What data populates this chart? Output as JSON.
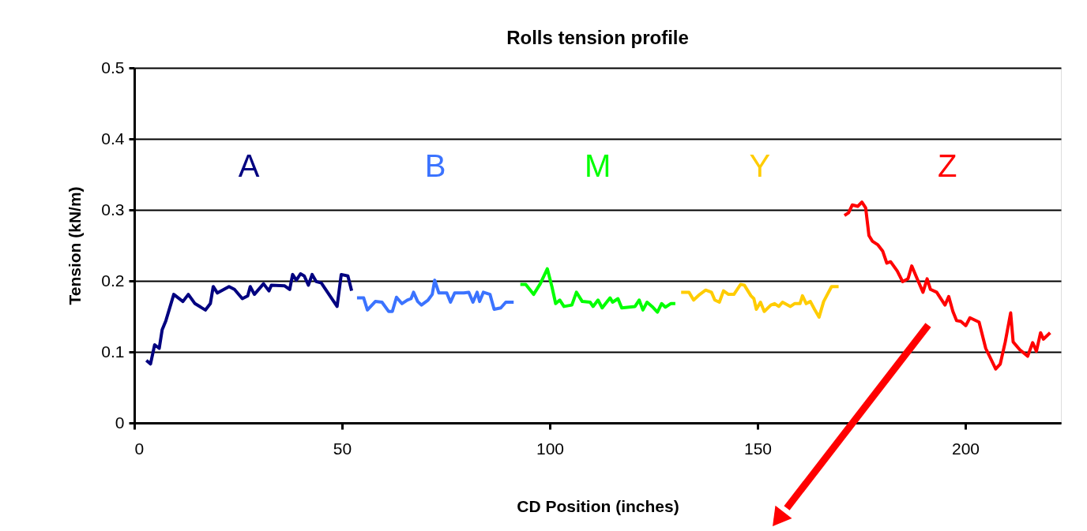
{
  "chart_data": {
    "type": "line",
    "title": "Rolls tension profile",
    "xlabel": "CD Position (inches)",
    "ylabel": "Tension (kN/m)",
    "xlim": [
      0,
      223
    ],
    "xticks": [
      0,
      50,
      100,
      150,
      200
    ],
    "ylim": [
      0,
      0.5
    ],
    "yticks": [
      0,
      0.1,
      0.2,
      0.3,
      0.4,
      0.5
    ],
    "grid": "y",
    "line_style": "solid",
    "marker": "none",
    "series": [
      {
        "name": "A",
        "color": "#000080",
        "x": [
          2.9,
          3.9,
          4.9,
          6.0,
          6.7,
          7.6,
          9.5,
          11.7,
          13.0,
          14.6,
          17.1,
          18.3,
          19.0,
          20.0,
          22.8,
          24.1,
          26.0,
          27.3,
          27.9,
          28.9,
          31.1,
          32.4,
          33.0,
          36.2,
          37.4,
          38.1,
          39.0,
          40.0,
          40.9,
          41.9,
          42.8,
          43.8,
          45.0,
          48.8,
          49.8,
          51.4,
          52.3
        ],
        "values": [
          0.088,
          0.083,
          0.11,
          0.105,
          0.131,
          0.144,
          0.181,
          0.171,
          0.181,
          0.168,
          0.159,
          0.168,
          0.192,
          0.183,
          0.192,
          0.188,
          0.175,
          0.179,
          0.192,
          0.181,
          0.196,
          0.186,
          0.194,
          0.193,
          0.188,
          0.209,
          0.201,
          0.21,
          0.207,
          0.194,
          0.209,
          0.199,
          0.197,
          0.164,
          0.209,
          0.207,
          0.186
        ]
      },
      {
        "name": "B",
        "color": "#3b73ff",
        "x": [
          53.6,
          55.2,
          56.1,
          58.0,
          59.6,
          61.2,
          62.1,
          63.1,
          64.4,
          65.7,
          66.6,
          67.2,
          68.2,
          69.1,
          70.7,
          71.7,
          72.3,
          73.3,
          75.2,
          76.1,
          77.1,
          79.3,
          80.5,
          81.5,
          82.5,
          83.1,
          84.0,
          85.6,
          86.6,
          88.2,
          89.4,
          91.3
        ],
        "values": [
          0.176,
          0.176,
          0.159,
          0.171,
          0.17,
          0.157,
          0.157,
          0.177,
          0.168,
          0.173,
          0.175,
          0.184,
          0.171,
          0.166,
          0.173,
          0.181,
          0.201,
          0.183,
          0.183,
          0.17,
          0.183,
          0.183,
          0.184,
          0.17,
          0.184,
          0.171,
          0.184,
          0.181,
          0.16,
          0.162,
          0.17,
          0.17
        ]
      },
      {
        "name": "M",
        "color": "#00ff00",
        "x": [
          92.9,
          94.2,
          96.1,
          97.7,
          99.4,
          100.5,
          101.4,
          102.4,
          103.4,
          105.3,
          106.4,
          107.8,
          109.7,
          110.4,
          111.6,
          112.6,
          114.5,
          115.1,
          116.4,
          117.3,
          120.5,
          121.5,
          122.4,
          123.4,
          124.6,
          125.9,
          126.9,
          127.8,
          129.1,
          130.2
        ],
        "values": [
          0.195,
          0.195,
          0.181,
          0.196,
          0.217,
          0.192,
          0.168,
          0.173,
          0.164,
          0.166,
          0.184,
          0.171,
          0.17,
          0.164,
          0.173,
          0.162,
          0.176,
          0.17,
          0.175,
          0.162,
          0.164,
          0.173,
          0.159,
          0.17,
          0.164,
          0.156,
          0.168,
          0.163,
          0.168,
          0.168
        ]
      },
      {
        "name": "Y",
        "color": "#ffcc00",
        "x": [
          131.6,
          133.5,
          134.6,
          136.1,
          137.5,
          138.9,
          139.7,
          140.8,
          141.8,
          143.0,
          144.3,
          145.9,
          146.8,
          148.4,
          149.1,
          149.7,
          150.7,
          151.6,
          153.2,
          154.1,
          155.1,
          156.0,
          157.9,
          158.9,
          160.2,
          160.8,
          161.7,
          162.7,
          163.7,
          164.8,
          165.9,
          166.8,
          167.8,
          169.5
        ],
        "values": [
          0.184,
          0.184,
          0.173,
          0.181,
          0.187,
          0.184,
          0.173,
          0.17,
          0.186,
          0.181,
          0.181,
          0.195,
          0.194,
          0.179,
          0.175,
          0.16,
          0.17,
          0.157,
          0.166,
          0.168,
          0.164,
          0.17,
          0.164,
          0.168,
          0.168,
          0.179,
          0.168,
          0.171,
          0.16,
          0.149,
          0.171,
          0.181,
          0.192,
          0.192
        ]
      },
      {
        "name": "Z",
        "color": "#ff0000",
        "x": [
          170.9,
          171.9,
          172.8,
          174.1,
          175.1,
          176.0,
          176.8,
          177.6,
          178.9,
          180.1,
          181.1,
          182.0,
          183.6,
          184.9,
          186.2,
          187.1,
          188.4,
          189.8,
          190.8,
          191.6,
          193.1,
          195.1,
          196.0,
          197.0,
          197.9,
          198.9,
          200.1,
          201.1,
          203.3,
          204.9,
          207.3,
          208.4,
          209.6,
          210.9,
          211.5,
          213.1,
          215.0,
          216.2,
          217.1,
          218.1,
          218.8,
          220.4
        ],
        "values": [
          0.292,
          0.296,
          0.307,
          0.305,
          0.311,
          0.303,
          0.264,
          0.256,
          0.251,
          0.242,
          0.225,
          0.227,
          0.214,
          0.199,
          0.203,
          0.221,
          0.203,
          0.184,
          0.203,
          0.188,
          0.184,
          0.166,
          0.178,
          0.157,
          0.144,
          0.143,
          0.137,
          0.148,
          0.142,
          0.105,
          0.076,
          0.083,
          0.114,
          0.155,
          0.114,
          0.103,
          0.094,
          0.113,
          0.101,
          0.127,
          0.118,
          0.127
        ]
      }
    ]
  }
}
